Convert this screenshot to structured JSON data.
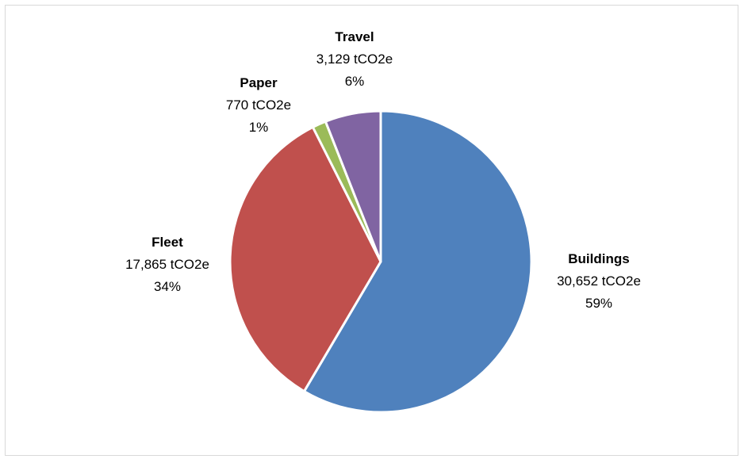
{
  "chart_data": {
    "type": "pie",
    "unit": "tCO2e",
    "slices": [
      {
        "name": "Buildings",
        "value": 30652,
        "value_label": "30,652 tCO2e",
        "percent_label": "59%",
        "color": "#4f81bd"
      },
      {
        "name": "Fleet",
        "value": 17865,
        "value_label": "17,865 tCO2e",
        "percent_label": "34%",
        "color": "#c0504d"
      },
      {
        "name": "Paper",
        "value": 770,
        "value_label": "770 tCO2e",
        "percent_label": "1%",
        "color": "#9bbb59"
      },
      {
        "name": "Travel",
        "value": 3129,
        "value_label": "3,129 tCO2e",
        "percent_label": "6%",
        "color": "#8064a2"
      }
    ],
    "start_angle": "12 o'clock",
    "direction": "clockwise",
    "legend": "none"
  }
}
